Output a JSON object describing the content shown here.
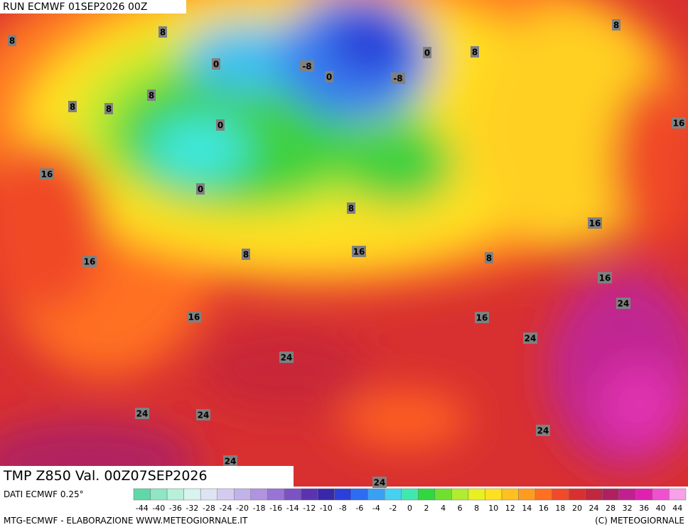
{
  "header": {
    "run": "RUN ECMWF 01SEP2026 00Z"
  },
  "map": {
    "title": "TMP Z850 Val. 00Z07SEP2026",
    "contour_labels": [
      8,
      8,
      0,
      -8,
      0,
      0,
      8,
      8,
      8,
      8,
      8,
      -8,
      0,
      0,
      16,
      16,
      8,
      16,
      16,
      8,
      16,
      8,
      16,
      24,
      16,
      16,
      24,
      24,
      24,
      24,
      24,
      24,
      24
    ]
  },
  "legend": {
    "source": "DATI ECMWF 0.25°",
    "labels": [
      "-44",
      "-40",
      "-36",
      "-32",
      "-28",
      "-24",
      "-20",
      "-18",
      "-16",
      "-14",
      "-12",
      "-10",
      "-8",
      "-6",
      "-4",
      "-2",
      "0",
      "2",
      "4",
      "6",
      "8",
      "10",
      "12",
      "14",
      "16",
      "18",
      "20",
      "24",
      "28",
      "32",
      "36",
      "40",
      "44"
    ],
    "colors": [
      "#5fd8a8",
      "#8fe6c4",
      "#b8f0dc",
      "#d8f4ee",
      "#dfe4f4",
      "#d4ccf0",
      "#c2b2ea",
      "#b094e0",
      "#9a74d4",
      "#7c52c4",
      "#5a34b0",
      "#3a28a8",
      "#2a40d8",
      "#2e6cf0",
      "#3aa0f4",
      "#48d0f0",
      "#40e8b0",
      "#30d840",
      "#70e030",
      "#b0ec30",
      "#e8f020",
      "#ffe020",
      "#ffc020",
      "#ff9c20",
      "#ff7020",
      "#f04a28",
      "#d83030",
      "#c02840",
      "#b02060",
      "#c02090",
      "#e020b0",
      "#f050d0",
      "#f8a0e8"
    ]
  },
  "footer": {
    "credit": "MTG-ECMWF - ELABORAZIONE WWW.METEOGIORNALE.IT",
    "copyright": "(C) METEOGIORNALE"
  }
}
